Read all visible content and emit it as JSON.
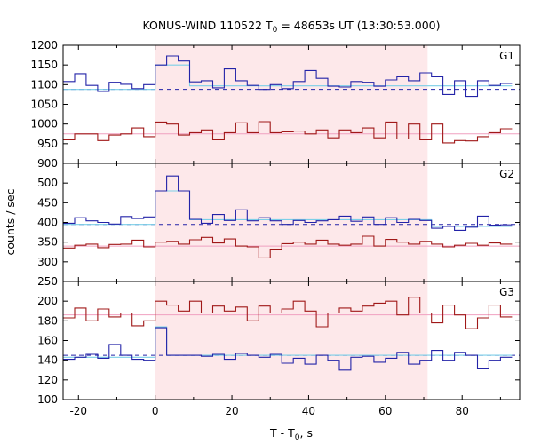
{
  "figure": {
    "title_main": "KONUS-WIND 110522 T",
    "title_sub": "0",
    "title_rest": " = 48653s UT (13:30:53.000)",
    "xlabel_main": "T - T",
    "xlabel_sub": "0",
    "xlabel_rest": ", s",
    "ylabel": "counts / sec"
  },
  "colors": {
    "dark_blue": "#2323a8",
    "dark_red": "#a01818",
    "light_blue": "#7ccfe8",
    "pink_line": "#f0a0c0",
    "shade": "#fde8ea",
    "axis": "#000000"
  },
  "chart_data": [
    {
      "type": "line",
      "panel": "G1",
      "xlim": [
        -24,
        95
      ],
      "ylim": [
        900,
        1200
      ],
      "yticks": [
        900,
        950,
        1000,
        1050,
        1100,
        1150,
        1200
      ],
      "xticks": [
        -20,
        0,
        20,
        40,
        60,
        80
      ],
      "shaded_interval": [
        0,
        71
      ],
      "bin_edges": [
        -24,
        -21,
        -18,
        -15,
        -12,
        -9,
        -6,
        -3,
        0,
        3,
        6,
        9,
        12,
        15,
        18,
        21,
        24,
        27,
        30,
        33,
        36,
        39,
        42,
        45,
        48,
        51,
        54,
        57,
        60,
        63,
        66,
        69,
        72,
        75,
        78,
        81,
        84,
        87,
        90,
        93
      ],
      "series": [
        {
          "style": "step",
          "color": "dark_blue",
          "values": [
            1108,
            1128,
            1098,
            1083,
            1106,
            1101,
            1090,
            1100,
            1150,
            1173,
            1160,
            1107,
            1110,
            1092,
            1140,
            1110,
            1098,
            1088,
            1100,
            1090,
            1108,
            1136,
            1116,
            1096,
            1094,
            1108,
            1106,
            1096,
            1112,
            1120,
            1110,
            1130,
            1120,
            1075,
            1110,
            1070,
            1110,
            1098,
            1103
          ]
        },
        {
          "style": "step",
          "color": "dark_red",
          "values": [
            960,
            975,
            975,
            958,
            972,
            975,
            990,
            968,
            1005,
            1000,
            972,
            978,
            985,
            960,
            978,
            1003,
            978,
            1006,
            978,
            980,
            982,
            975,
            985,
            965,
            985,
            978,
            990,
            965,
            1005,
            962,
            1000,
            960,
            1000,
            952,
            958,
            957,
            968,
            978,
            988
          ]
        },
        {
          "style": "step",
          "color": "light_blue",
          "values": [
            1088,
            1088,
            1088,
            1088,
            1088,
            1088,
            1088,
            1088,
            1150,
            1150,
            1150,
            1097,
            1097,
            1097,
            1097,
            1097,
            1097,
            1097,
            1097,
            1097,
            1097,
            1097,
            1097,
            1097,
            1097,
            1097,
            1097,
            1097,
            1097,
            1097,
            1097,
            1097,
            1097,
            1097,
            1097,
            1097,
            1097,
            1097,
            1097
          ]
        },
        {
          "style": "hline",
          "color": "dark_blue",
          "dashed": true,
          "y": 1088
        },
        {
          "style": "hline",
          "color": "pink_line",
          "dashed": false,
          "y": 975
        }
      ]
    },
    {
      "type": "line",
      "panel": "G2",
      "xlim": [
        -24,
        95
      ],
      "ylim": [
        250,
        550
      ],
      "yticks": [
        250,
        300,
        350,
        400,
        450,
        500
      ],
      "xticks": [
        -20,
        0,
        20,
        40,
        60,
        80
      ],
      "shaded_interval": [
        0,
        71
      ],
      "bin_edges": [
        -24,
        -21,
        -18,
        -15,
        -12,
        -9,
        -6,
        -3,
        0,
        3,
        6,
        9,
        12,
        15,
        18,
        21,
        24,
        27,
        30,
        33,
        36,
        39,
        42,
        45,
        48,
        51,
        54,
        57,
        60,
        63,
        66,
        69,
        72,
        75,
        78,
        81,
        84,
        87,
        90,
        93
      ],
      "series": [
        {
          "style": "step",
          "color": "dark_blue",
          "values": [
            398,
            412,
            404,
            400,
            396,
            415,
            410,
            414,
            480,
            518,
            480,
            408,
            398,
            420,
            405,
            432,
            404,
            412,
            404,
            395,
            405,
            400,
            404,
            407,
            416,
            403,
            414,
            395,
            412,
            400,
            408,
            405,
            385,
            390,
            380,
            388,
            416,
            393,
            394
          ]
        },
        {
          "style": "step",
          "color": "dark_red",
          "values": [
            335,
            342,
            345,
            336,
            344,
            345,
            355,
            338,
            350,
            352,
            345,
            356,
            362,
            348,
            358,
            340,
            338,
            310,
            332,
            346,
            350,
            345,
            355,
            345,
            342,
            345,
            365,
            340,
            357,
            350,
            345,
            352,
            345,
            338,
            342,
            347,
            342,
            348,
            345
          ]
        },
        {
          "style": "step",
          "color": "light_blue",
          "values": [
            395,
            395,
            395,
            395,
            395,
            395,
            395,
            395,
            480,
            480,
            480,
            407,
            407,
            407,
            407,
            407,
            407,
            407,
            407,
            407,
            407,
            407,
            407,
            407,
            407,
            407,
            407,
            407,
            407,
            407,
            407,
            407,
            390,
            390,
            390,
            390,
            390,
            390,
            390
          ]
        },
        {
          "style": "hline",
          "color": "dark_blue",
          "dashed": true,
          "y": 395
        },
        {
          "style": "hline",
          "color": "pink_line",
          "dashed": false,
          "y": 340
        }
      ]
    },
    {
      "type": "line",
      "panel": "G3",
      "xlim": [
        -24,
        95
      ],
      "ylim": [
        100,
        220
      ],
      "yticks": [
        100,
        120,
        140,
        160,
        180,
        200
      ],
      "xticks": [
        -20,
        0,
        20,
        40,
        60,
        80
      ],
      "shaded_interval": [
        0,
        71
      ],
      "bin_edges": [
        -24,
        -21,
        -18,
        -15,
        -12,
        -9,
        -6,
        -3,
        0,
        3,
        6,
        9,
        12,
        15,
        18,
        21,
        24,
        27,
        30,
        33,
        36,
        39,
        42,
        45,
        48,
        51,
        54,
        57,
        60,
        63,
        66,
        69,
        72,
        75,
        78,
        81,
        84,
        87,
        90,
        93
      ],
      "series": [
        {
          "style": "step",
          "color": "dark_blue",
          "values": [
            141,
            143,
            146,
            142,
            156,
            145,
            141,
            140,
            173,
            145,
            145,
            145,
            144,
            146,
            141,
            147,
            145,
            143,
            146,
            137,
            142,
            136,
            145,
            140,
            130,
            143,
            144,
            138,
            142,
            148,
            136,
            140,
            150,
            140,
            148,
            145,
            132,
            140,
            143
          ]
        },
        {
          "style": "step",
          "color": "dark_red",
          "values": [
            183,
            193,
            180,
            192,
            184,
            188,
            175,
            180,
            200,
            196,
            190,
            200,
            188,
            195,
            190,
            194,
            180,
            195,
            188,
            192,
            200,
            190,
            174,
            188,
            193,
            190,
            195,
            198,
            200,
            186,
            204,
            188,
            178,
            196,
            186,
            172,
            183,
            196,
            184
          ]
        },
        {
          "style": "step",
          "color": "light_blue",
          "values": [
            143,
            143,
            143,
            143,
            143,
            143,
            143,
            143,
            174,
            145,
            145,
            145,
            145,
            145,
            145,
            145,
            145,
            145,
            145,
            145,
            145,
            145,
            145,
            145,
            145,
            145,
            145,
            145,
            145,
            145,
            145,
            145,
            145,
            145,
            145,
            145,
            145,
            145,
            145
          ]
        },
        {
          "style": "hline",
          "color": "dark_blue",
          "dashed": true,
          "y": 145
        },
        {
          "style": "hline",
          "color": "pink_line",
          "dashed": false,
          "y": 186
        }
      ]
    }
  ]
}
